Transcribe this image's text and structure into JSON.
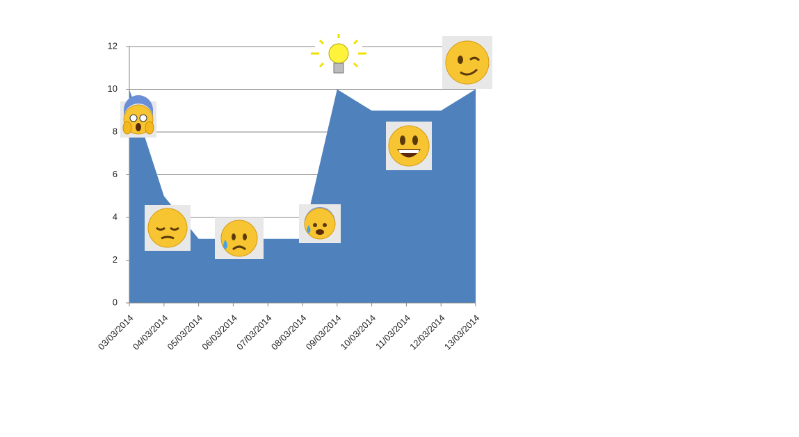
{
  "chart_data": {
    "type": "area",
    "categories": [
      "03/03/2014",
      "04/03/2014",
      "05/03/2014",
      "06/03/2014",
      "07/03/2014",
      "08/03/2014",
      "09/03/2014",
      "10/03/2014",
      "11/03/2014",
      "12/03/2014",
      "13/03/2014"
    ],
    "values": [
      10,
      5,
      3,
      3,
      3,
      3,
      10,
      9,
      9,
      9,
      10
    ],
    "color": "#4f81bd",
    "ylim": [
      0,
      12
    ],
    "yticks": [
      0,
      2,
      4,
      6,
      8,
      10,
      12
    ],
    "grid": true
  }
}
